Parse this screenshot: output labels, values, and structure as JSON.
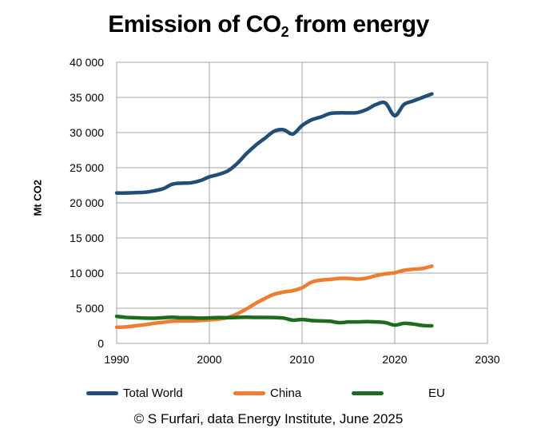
{
  "chart_data": {
    "type": "line",
    "title_main": "Emission of CO",
    "title_sub": "2",
    "title_tail": " from energy",
    "ylabel": "Mt CO2",
    "xlabel": "",
    "xlim": [
      1990,
      2030
    ],
    "ylim": [
      0,
      40000
    ],
    "x_ticks": [
      1990,
      2000,
      2010,
      2020,
      2030
    ],
    "y_ticks": [
      0,
      5000,
      10000,
      15000,
      20000,
      25000,
      30000,
      35000,
      40000
    ],
    "y_tick_labels": [
      "0",
      "5 000",
      "10 000",
      "15 000",
      "20 000",
      "25 000",
      "30 000",
      "35 000",
      "40 000"
    ],
    "grid": true,
    "legend_position": "bottom",
    "x": [
      1990,
      1991,
      1992,
      1993,
      1994,
      1995,
      1996,
      1997,
      1998,
      1999,
      2000,
      2001,
      2002,
      2003,
      2004,
      2005,
      2006,
      2007,
      2008,
      2009,
      2010,
      2011,
      2012,
      2013,
      2014,
      2015,
      2016,
      2017,
      2018,
      2019,
      2020,
      2021,
      2022,
      2023,
      2024
    ],
    "series": [
      {
        "name": "Total World",
        "color": "#1f4e79",
        "values": [
          21400,
          21400,
          21450,
          21500,
          21700,
          22000,
          22650,
          22800,
          22850,
          23150,
          23700,
          24050,
          24550,
          25600,
          27000,
          28200,
          29200,
          30200,
          30400,
          29800,
          31000,
          31800,
          32200,
          32700,
          32800,
          32800,
          32850,
          33300,
          34000,
          34200,
          32400,
          34000,
          34500,
          35000,
          35500
        ]
      },
      {
        "name": "China",
        "color": "#ed7d31",
        "values": [
          2300,
          2350,
          2500,
          2650,
          2850,
          3000,
          3150,
          3200,
          3200,
          3250,
          3350,
          3450,
          3700,
          4200,
          4900,
          5700,
          6400,
          7000,
          7300,
          7500,
          7900,
          8700,
          9000,
          9100,
          9250,
          9250,
          9150,
          9300,
          9650,
          9900,
          10050,
          10400,
          10550,
          10650,
          11000
        ]
      },
      {
        "name": "EU",
        "color": "#1e6b1e",
        "values": [
          3850,
          3700,
          3650,
          3600,
          3580,
          3650,
          3720,
          3650,
          3650,
          3600,
          3620,
          3680,
          3650,
          3700,
          3720,
          3700,
          3700,
          3680,
          3600,
          3300,
          3400,
          3250,
          3200,
          3150,
          2950,
          3050,
          3050,
          3100,
          3050,
          2950,
          2600,
          2850,
          2750,
          2550,
          2500
        ]
      }
    ]
  },
  "credit": "© S Furfari, data Energy Institute, June 2025"
}
